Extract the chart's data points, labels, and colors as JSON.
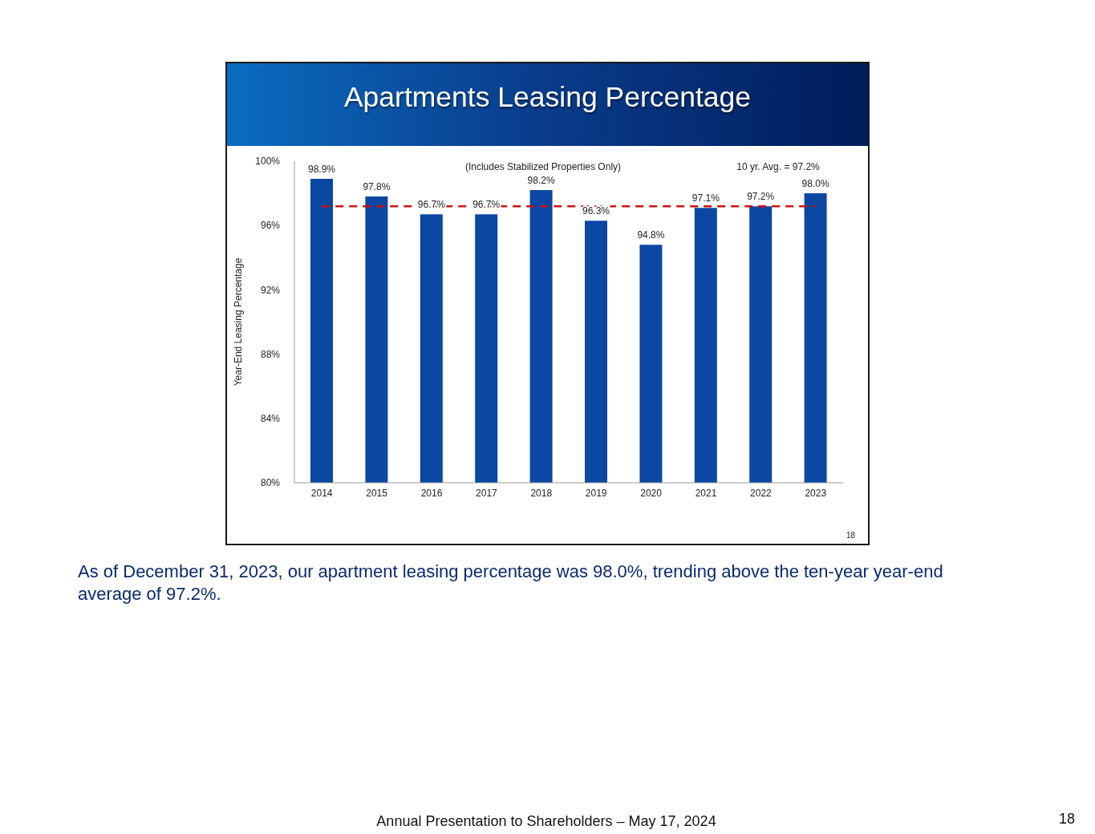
{
  "chart_data": {
    "type": "bar",
    "title": "Apartments Leasing Percentage",
    "subtitle": "(Includes Stabilized Properties Only)",
    "ylabel": "Year-End Leasing Percentage",
    "categories": [
      "2014",
      "2015",
      "2016",
      "2017",
      "2018",
      "2019",
      "2020",
      "2021",
      "2022",
      "2023"
    ],
    "values": [
      98.9,
      97.8,
      96.7,
      96.7,
      98.2,
      96.3,
      94.8,
      97.1,
      97.2,
      98.0
    ],
    "value_labels": [
      "98.9%",
      "97.8%",
      "96.7%",
      "96.7%",
      "98.2%",
      "96.3%",
      "94.8%",
      "97.1%",
      "97.2%",
      "98.0%"
    ],
    "color": "#0b47a3",
    "ylim": [
      80,
      100
    ],
    "yticks": [
      {
        "value": 80,
        "label": "80%"
      },
      {
        "value": 84,
        "label": "84%"
      },
      {
        "value": 88,
        "label": "88%"
      },
      {
        "value": 92,
        "label": "92%"
      },
      {
        "value": 96,
        "label": "96%"
      },
      {
        "value": 100,
        "label": "100%"
      }
    ],
    "ref_lines": [
      {
        "axis": "y",
        "value": 97.2,
        "color": "#cc1111",
        "line_style": "dashed"
      }
    ],
    "annotations": [
      "10 yr. Avg. = 97.2%",
      "As of December 31, 2023, our apartment leasing percentage was 98.0%, trending above the ten-year year-end average of 97.2%.",
      "Annual Presentation to Shareholders – May 17, 2024",
      "18",
      "18"
    ]
  }
}
